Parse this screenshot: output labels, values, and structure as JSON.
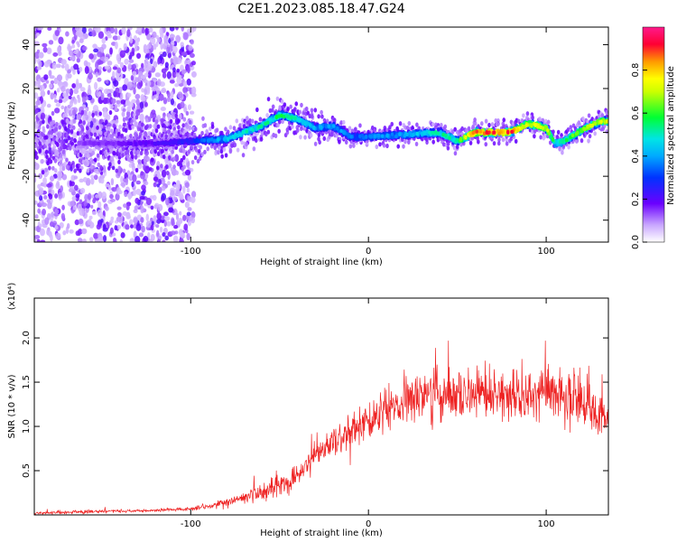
{
  "title": "C2E1.2023.085.18.47.G24",
  "chart_data": [
    {
      "type": "heatmap",
      "xlabel": "Height of straight line (km)",
      "ylabel": "Frequency (Hz)",
      "xlim": [
        -188,
        135
      ],
      "ylim": [
        -50,
        48
      ],
      "xticks": [
        -100,
        0,
        100
      ],
      "yticks": [
        -40,
        -20,
        0,
        20,
        40
      ],
      "colorbar": {
        "label": "Normalized spectral amplitude",
        "range": [
          0.0,
          1.0
        ],
        "ticks": [
          "0.0",
          "0.2",
          "0.4",
          "0.6",
          "0.8"
        ],
        "colors": [
          "#ffffff",
          "#6a00ff",
          "#0033ff",
          "#00e5ff",
          "#00ff33",
          "#ffff00",
          "#ff9900",
          "#ff0033",
          "#ff1a8c"
        ]
      },
      "ridge": {
        "x": [
          -150,
          -120,
          -100,
          -80,
          -60,
          -50,
          -40,
          -30,
          -20,
          -10,
          0,
          20,
          40,
          50,
          60,
          70,
          80,
          90,
          100,
          105,
          110,
          120,
          130
        ],
        "frequency": [
          -5,
          -5,
          -4,
          -3,
          3,
          8,
          6,
          2,
          3,
          -2,
          -2,
          -1,
          0,
          -4,
          0,
          0,
          0,
          4,
          2,
          -5,
          -4,
          1,
          5
        ],
        "peak_amplitude": [
          0.15,
          0.2,
          0.25,
          0.45,
          0.5,
          0.55,
          0.5,
          0.4,
          0.4,
          0.35,
          0.35,
          0.4,
          0.5,
          0.55,
          0.85,
          0.85,
          0.85,
          0.7,
          0.75,
          0.5,
          0.55,
          0.65,
          0.7
        ]
      }
    },
    {
      "type": "line",
      "xlabel": "Height of straight line (km)",
      "ylabel": "SNR (10 * v/v)",
      "scale_label": "(x10⁴)",
      "xlim": [
        -188,
        135
      ],
      "ylim": [
        0,
        2.45
      ],
      "xticks": [
        -100,
        0,
        100
      ],
      "yticks": [
        "0.5",
        "1.0",
        "1.5",
        "2.0"
      ],
      "series": [
        {
          "color": "#ee2222",
          "x": [
            -188,
            -150,
            -120,
            -100,
            -90,
            -80,
            -70,
            -60,
            -50,
            -40,
            -35,
            -30,
            -20,
            -10,
            0,
            10,
            20,
            30,
            40,
            50,
            60,
            70,
            80,
            90,
            100,
            110,
            120,
            130,
            135
          ],
          "y": [
            0.02,
            0.04,
            0.05,
            0.07,
            0.1,
            0.14,
            0.19,
            0.26,
            0.33,
            0.42,
            0.55,
            0.68,
            0.82,
            0.95,
            1.08,
            1.2,
            1.3,
            1.35,
            1.38,
            1.38,
            1.34,
            1.35,
            1.34,
            1.33,
            1.38,
            1.34,
            1.28,
            1.18,
            1.05
          ]
        }
      ]
    }
  ]
}
